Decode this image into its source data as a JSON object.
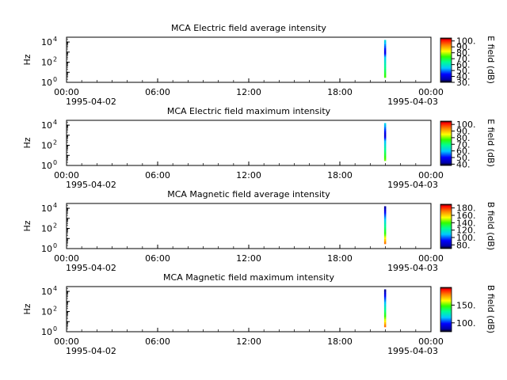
{
  "chart_data": [
    {
      "type": "heatmap",
      "title": "MCA  Electric field average intensity",
      "ylabel": "Hz",
      "xlim": [
        "1995-04-02T00:00",
        "1995-04-03T00:00"
      ],
      "x_ticks": [
        "00:00",
        "06:00",
        "12:00",
        "18:00",
        "00:00"
      ],
      "x_dates": [
        "1995-04-02",
        "1995-04-03"
      ],
      "yscale": "log",
      "ylim": [
        1,
        30000
      ],
      "y_ticks": [
        "10",
        "10",
        "10"
      ],
      "y_tick_exponents": [
        "0",
        "2",
        "4"
      ],
      "colorbar": {
        "label": "E field (dB)",
        "range": [
          30,
          105
        ],
        "ticks": [
          "30.",
          "40.",
          "50.",
          "60.",
          "70.",
          "80.",
          "90.",
          "100."
        ]
      },
      "event": {
        "time_start": "1995-04-02T20:55",
        "time_end": "1995-04-02T21:00",
        "freq_range": [
          3,
          16000
        ],
        "profile": [
          {
            "freq": 3,
            "value": 75
          },
          {
            "freq": 30,
            "value": 65
          },
          {
            "freq": 300,
            "value": 55
          },
          {
            "freq": 1000,
            "value": 40
          },
          {
            "freq": 16000,
            "value": 58
          }
        ]
      }
    },
    {
      "type": "heatmap",
      "title": "MCA  Electric field maximum intensity",
      "ylabel": "Hz",
      "xlim": [
        "1995-04-02T00:00",
        "1995-04-03T00:00"
      ],
      "x_ticks": [
        "00:00",
        "06:00",
        "12:00",
        "18:00",
        "00:00"
      ],
      "x_dates": [
        "1995-04-02",
        "1995-04-03"
      ],
      "yscale": "log",
      "ylim": [
        1,
        30000
      ],
      "y_ticks": [
        "10",
        "10",
        "10"
      ],
      "y_tick_exponents": [
        "0",
        "2",
        "4"
      ],
      "colorbar": {
        "label": "E field (dB)",
        "range": [
          38,
          105
        ],
        "ticks": [
          "40.",
          "50.",
          "60.",
          "70.",
          "80.",
          "90.",
          "100."
        ]
      },
      "event": {
        "time_start": "1995-04-02T20:55",
        "time_end": "1995-04-02T21:00",
        "freq_range": [
          3,
          16000
        ],
        "profile": [
          {
            "freq": 3,
            "value": 80
          },
          {
            "freq": 30,
            "value": 70
          },
          {
            "freq": 300,
            "value": 58
          },
          {
            "freq": 1000,
            "value": 45
          },
          {
            "freq": 16000,
            "value": 62
          }
        ]
      }
    },
    {
      "type": "heatmap",
      "title": "MCA  Magnetic field average intensity",
      "ylabel": "Hz",
      "xlim": [
        "1995-04-02T00:00",
        "1995-04-03T00:00"
      ],
      "x_ticks": [
        "00:00",
        "06:00",
        "12:00",
        "18:00",
        "00:00"
      ],
      "x_dates": [
        "1995-04-02",
        "1995-04-03"
      ],
      "yscale": "log",
      "ylim": [
        1,
        30000
      ],
      "y_ticks": [
        "10",
        "10",
        "10"
      ],
      "y_tick_exponents": [
        "0",
        "2",
        "4"
      ],
      "colorbar": {
        "label": "B field (dB)",
        "range": [
          70,
          190
        ],
        "ticks": [
          "80.",
          "100.",
          "120.",
          "140.",
          "160.",
          "180."
        ]
      },
      "event": {
        "time_start": "1995-04-02T20:55",
        "time_end": "1995-04-02T21:00",
        "freq_range": [
          3,
          16000
        ],
        "profile": [
          {
            "freq": 3,
            "value": 175
          },
          {
            "freq": 30,
            "value": 140
          },
          {
            "freq": 300,
            "value": 120
          },
          {
            "freq": 3000,
            "value": 95
          },
          {
            "freq": 16000,
            "value": 75
          }
        ]
      }
    },
    {
      "type": "heatmap",
      "title": "MCA  Magnetic field maximum intensity",
      "ylabel": "Hz",
      "xlim": [
        "1995-04-02T00:00",
        "1995-04-03T00:00"
      ],
      "x_ticks": [
        "00:00",
        "06:00",
        "12:00",
        "18:00",
        "00:00"
      ],
      "x_dates": [
        "1995-04-02",
        "1995-04-03"
      ],
      "yscale": "log",
      "ylim": [
        1,
        30000
      ],
      "y_ticks": [
        "10",
        "10",
        "10"
      ],
      "y_tick_exponents": [
        "0",
        "2",
        "4"
      ],
      "colorbar": {
        "label": "B field (dB)",
        "range": [
          75,
          200
        ],
        "ticks": [
          "100.",
          "150."
        ]
      },
      "event": {
        "time_start": "1995-04-02T20:55",
        "time_end": "1995-04-02T21:00",
        "freq_range": [
          3,
          16000
        ],
        "profile": [
          {
            "freq": 3,
            "value": 185
          },
          {
            "freq": 30,
            "value": 150
          },
          {
            "freq": 300,
            "value": 125
          },
          {
            "freq": 3000,
            "value": 100
          },
          {
            "freq": 16000,
            "value": 80
          }
        ]
      }
    }
  ]
}
